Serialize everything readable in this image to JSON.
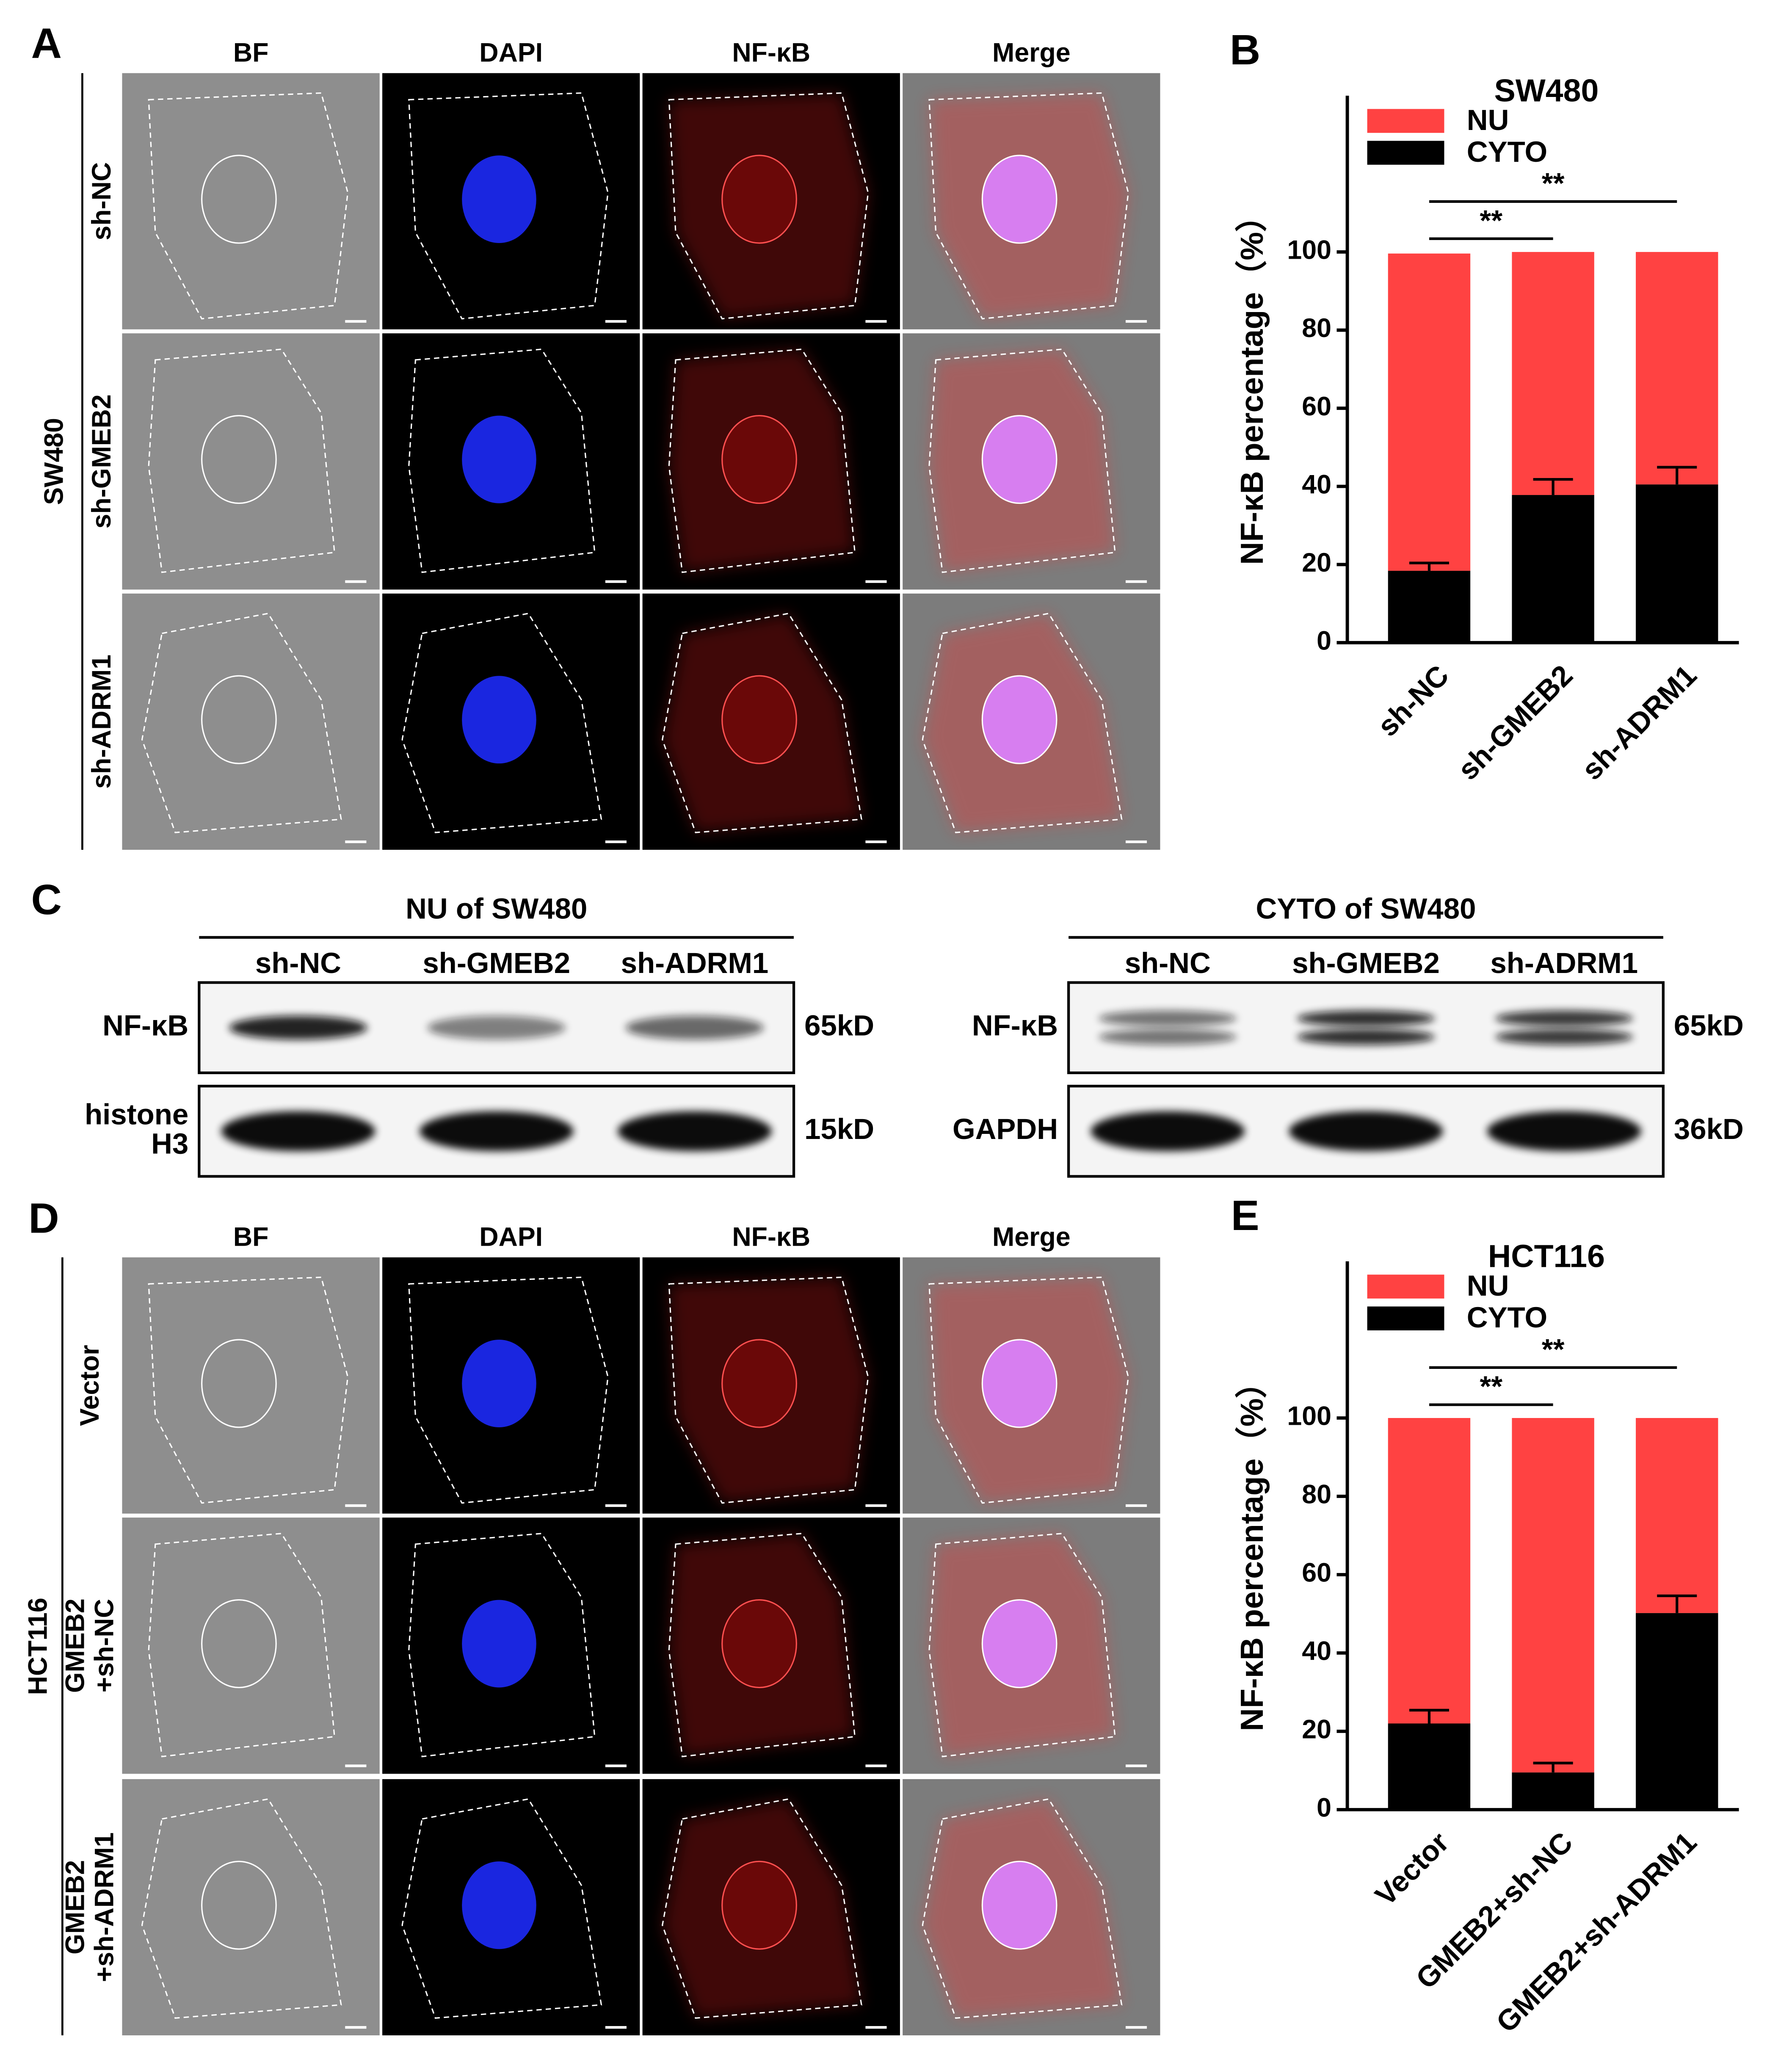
{
  "panel_a": {
    "label": "A",
    "columns": [
      "BF",
      "DAPI",
      "NF-κB",
      "Merge"
    ],
    "group": "SW480",
    "rows": [
      [
        "sh-NC"
      ],
      [
        "sh-GMEB2"
      ],
      [
        "sh-ADRM1"
      ]
    ]
  },
  "chart_data": [
    {
      "type": "bar",
      "stacked": true,
      "panel_label": "B",
      "title": "SW480",
      "y_label": "NF-κB percentage（%）",
      "categories": [
        "sh-NC",
        "sh-GMEB2",
        "sh-ADRM1"
      ],
      "series": [
        {
          "name": "CYTO",
          "color": "#000000",
          "values": [
            18.4,
            37.8,
            40.5
          ],
          "errors": [
            2,
            4,
            4.4
          ]
        },
        {
          "name": "NU",
          "color": "#ff4242",
          "values": [
            81.2,
            62.2,
            59.5
          ]
        }
      ],
      "ylim": [
        0,
        140
      ],
      "yticks": [
        0,
        20,
        40,
        60,
        80,
        100
      ],
      "legend": "upper left",
      "significance": [
        {
          "between": [
            "sh-NC",
            "sh-GMEB2"
          ],
          "label": "**"
        },
        {
          "between": [
            "sh-NC",
            "sh-ADRM1"
          ],
          "label": "**"
        }
      ]
    },
    {
      "type": "bar",
      "stacked": true,
      "panel_label": "E",
      "title": "HCT116",
      "y_label": "NF-κB percentage（%）",
      "categories": [
        "Vector",
        "GMEB2+sh-NC",
        "GMEB2+sh-ADRM1"
      ],
      "series": [
        {
          "name": "CYTO",
          "color": "#000000",
          "values": [
            22,
            9.5,
            50.2
          ],
          "errors": [
            3.4,
            2.4,
            4.4
          ]
        },
        {
          "name": "NU",
          "color": "#ff4242",
          "values": [
            78,
            90.5,
            49.8
          ]
        }
      ],
      "ylim": [
        0,
        140
      ],
      "yticks": [
        0,
        20,
        40,
        60,
        80,
        100
      ],
      "legend": "upper left",
      "significance": [
        {
          "between": [
            "Vector",
            "GMEB2+sh-NC"
          ],
          "label": "**"
        },
        {
          "between": [
            "Vector",
            "GMEB2+sh-ADRM1"
          ],
          "label": "**"
        }
      ]
    }
  ],
  "panel_c": {
    "label": "C",
    "blots": [
      {
        "title": "NU of SW480",
        "lanes": [
          "sh-NC",
          "sh-GMEB2",
          "sh-ADRM1"
        ],
        "rows": [
          {
            "label": [
              "NF-κB"
            ],
            "size": "65kD"
          },
          {
            "label": [
              "histone",
              "H3"
            ],
            "size": "15kD"
          }
        ]
      },
      {
        "title": "CYTO of SW480",
        "lanes": [
          "sh-NC",
          "sh-GMEB2",
          "sh-ADRM1"
        ],
        "rows": [
          {
            "label": [
              "NF-κB"
            ],
            "size": "65kD"
          },
          {
            "label": [
              "GAPDH"
            ],
            "size": "36kD"
          }
        ]
      }
    ]
  },
  "panel_d": {
    "label": "D",
    "columns": [
      "BF",
      "DAPI",
      "NF-κB",
      "Merge"
    ],
    "group": "HCT116",
    "rows": [
      [
        "Vector"
      ],
      [
        "GMEB2",
        "+sh-NC"
      ],
      [
        "GMEB2",
        "+sh-ADRM1"
      ]
    ]
  }
}
